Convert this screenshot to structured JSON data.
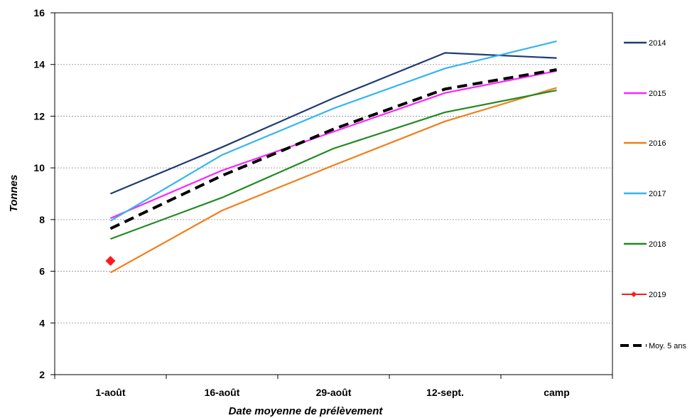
{
  "chart_data": {
    "type": "line",
    "title": "",
    "xlabel": "Date moyenne de prélèvement",
    "ylabel": "Tonnes",
    "categories": [
      "1-août",
      "16-août",
      "29-août",
      "12-sept.",
      "camp"
    ],
    "ylim": [
      2,
      16
    ],
    "yticks": [
      2,
      4,
      6,
      8,
      10,
      12,
      14,
      16
    ],
    "grid": "horizontal-dashed",
    "legend_position": "right",
    "series": [
      {
        "name": "2014",
        "color": "#1f3b73",
        "style": "solid",
        "values": [
          9.0,
          10.8,
          12.7,
          14.45,
          14.25
        ]
      },
      {
        "name": "2015",
        "color": "#ff22ff",
        "style": "solid",
        "values": [
          8.05,
          9.9,
          11.4,
          12.9,
          13.75
        ]
      },
      {
        "name": "2016",
        "color": "#ef7f1a",
        "style": "solid",
        "values": [
          5.95,
          8.35,
          10.1,
          11.8,
          13.1
        ]
      },
      {
        "name": "2017",
        "color": "#33b5f0",
        "style": "solid",
        "values": [
          7.95,
          10.5,
          12.3,
          13.85,
          14.9
        ]
      },
      {
        "name": "2018",
        "color": "#218a21",
        "style": "solid",
        "values": [
          7.25,
          8.85,
          10.75,
          12.15,
          13.0
        ]
      },
      {
        "name": "2019",
        "color": "#ff1a1a",
        "style": "marker",
        "marker": "diamond",
        "values": [
          6.4,
          null,
          null,
          null,
          null
        ]
      },
      {
        "name": "Moy. 5 ans",
        "color": "#000000",
        "style": "dashed",
        "values": [
          7.65,
          9.7,
          11.5,
          13.05,
          13.8
        ]
      }
    ]
  }
}
